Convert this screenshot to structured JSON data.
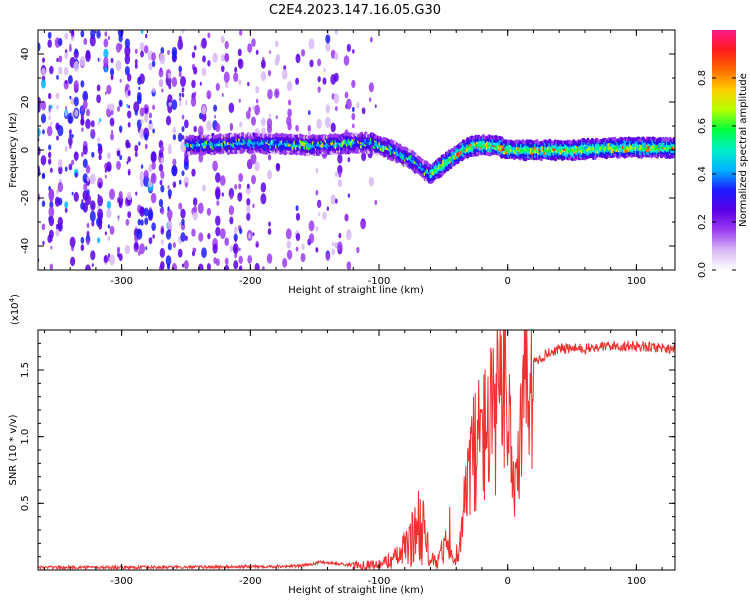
{
  "title": "C2E4.2023.147.16.05.G30",
  "chart_data": [
    {
      "type": "heatmap",
      "xlabel": "Height of straight line (km)",
      "ylabel": "Frequency (Hz)",
      "xlim": [
        -365,
        130
      ],
      "ylim": [
        -50,
        50
      ],
      "xticks": [
        -300,
        -200,
        -100,
        0,
        100
      ],
      "yticks": [
        -40,
        -20,
        0,
        20,
        40
      ],
      "colorbar": {
        "label": "Normalized spectral amplitude",
        "range": [
          0.0,
          1.0
        ],
        "ticks": [
          "0.0",
          "0.2",
          "0.4",
          "0.6",
          "0.8"
        ],
        "colors": [
          "#ffffff",
          "#d8b8f5",
          "#9a3cf0",
          "#5a00e6",
          "#1a1aff",
          "#00b4ff",
          "#00f0c8",
          "#00ff40",
          "#b4ff00",
          "#ffd000",
          "#ff6a00",
          "#ff1a1a",
          "#ff1a8c"
        ]
      },
      "ridge_frequency_hz": {
        "x": [
          -250,
          -200,
          -150,
          -120,
          -105,
          -90,
          -75,
          -60,
          -55,
          -45,
          -35,
          -25,
          -10,
          0,
          20,
          50,
          80,
          100,
          130
        ],
        "y": [
          2,
          3,
          2,
          3,
          3,
          0,
          -4,
          -10,
          -8,
          -4,
          0,
          2,
          2,
          0,
          0,
          0,
          1,
          1,
          1
        ]
      }
    },
    {
      "type": "line",
      "xlabel": "Height of straight line (km)",
      "ylabel": "SNR (10 * v/v)",
      "scale_label": "(x10",
      "scale_exponent": "4",
      "xlim": [
        -365,
        130
      ],
      "ylim": [
        0,
        1.8
      ],
      "xticks": [
        -300,
        -200,
        -100,
        0,
        100
      ],
      "yticks": [
        0.5,
        1.0,
        1.5
      ],
      "ytick_labels": [
        "0.5",
        "1.0",
        "1.5"
      ],
      "color": "#ee3030",
      "series": [
        {
          "name": "SNR",
          "x": [
            -365,
            -250,
            -160,
            -145,
            -125,
            -100,
            -85,
            -75,
            -68,
            -60,
            -55,
            -48,
            -40,
            -35,
            -28,
            -20,
            -10,
            0,
            5,
            15,
            20,
            30,
            40,
            60,
            80,
            100,
            130
          ],
          "y": [
            0.02,
            0.02,
            0.03,
            0.06,
            0.04,
            0.04,
            0.1,
            0.22,
            0.38,
            0.08,
            0.05,
            0.2,
            0.05,
            0.3,
            0.9,
            1.0,
            1.15,
            1.4,
            0.6,
            1.45,
            1.55,
            1.62,
            1.66,
            1.66,
            1.68,
            1.68,
            1.66
          ]
        }
      ]
    }
  ]
}
